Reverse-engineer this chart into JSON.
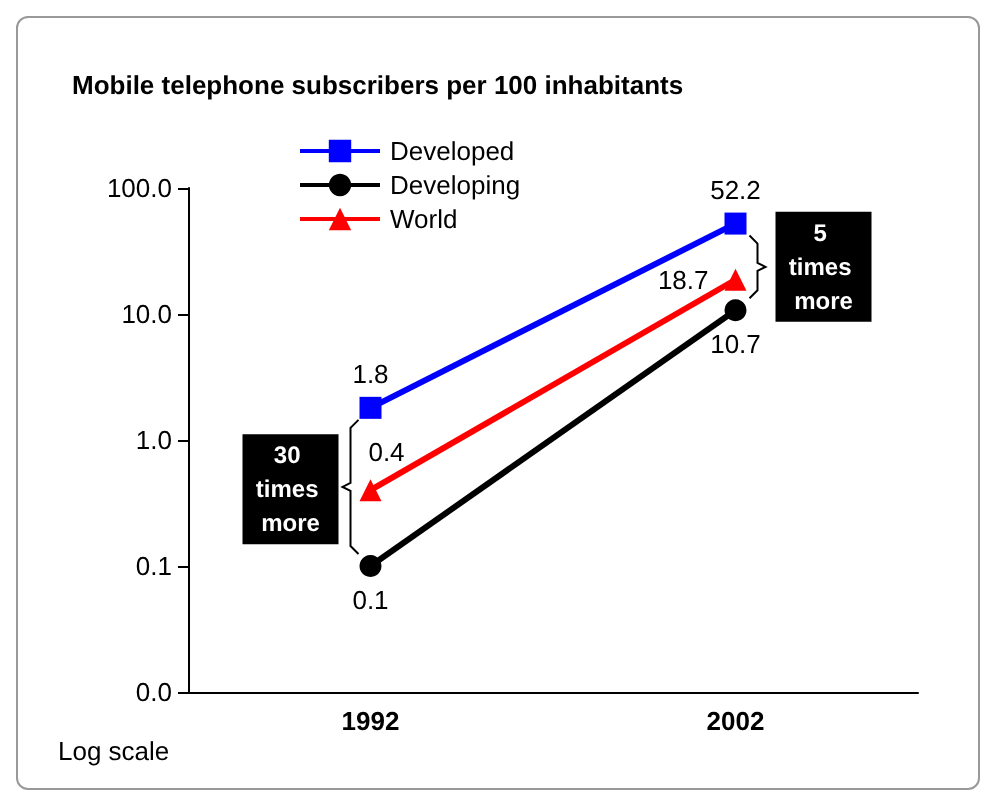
{
  "chart_data": {
    "type": "line",
    "title": "Mobile telephone subscribers per 100 inhabitants",
    "categories": [
      "1992",
      "2002"
    ],
    "series": [
      {
        "name": "Developed",
        "color": "#0000ff",
        "marker": "square",
        "values": [
          1.8,
          52.2
        ]
      },
      {
        "name": "Developing",
        "color": "#000000",
        "marker": "circle",
        "values": [
          0.1,
          10.7
        ]
      },
      {
        "name": "World",
        "color": "#ff0000",
        "marker": "triangle",
        "values": [
          0.4,
          18.7
        ]
      }
    ],
    "log": "y",
    "ylim": [
      0.01,
      100
    ],
    "yticks": [
      {
        "value": 0.01,
        "label": "0.0"
      },
      {
        "value": 0.1,
        "label": "0.1"
      },
      {
        "value": 1,
        "label": "1.0"
      },
      {
        "value": 10,
        "label": "10.0"
      },
      {
        "value": 100,
        "label": "100.0"
      }
    ],
    "data_labels": true,
    "grid": false,
    "legend": "top left",
    "line_style": "solid",
    "annotations": [
      {
        "text": "30 times more",
        "x": "1992",
        "y": 0.4
      },
      {
        "text": "5 times more",
        "x": "2002",
        "y": 18.7
      },
      "Log scale"
    ]
  }
}
